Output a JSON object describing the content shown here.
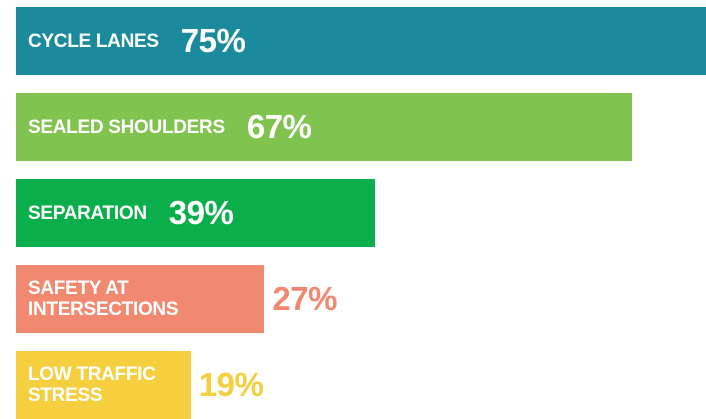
{
  "chart_data": {
    "type": "bar",
    "orientation": "horizontal",
    "categories": [
      "CYCLE LANES",
      "SEALED SHOULDERS",
      "SEPARATION",
      "SAFETY AT INTERSECTIONS",
      "LOW TRAFFIC STRESS"
    ],
    "values": [
      75,
      67,
      39,
      27,
      19
    ],
    "value_labels": [
      "75%",
      "67%",
      "39%",
      "27%",
      "19%"
    ],
    "colors": [
      "#1a8a9c",
      "#80c34e",
      "#0aae4a",
      "#f0896f",
      "#f5cf3e"
    ],
    "xlim": [
      0,
      75
    ]
  }
}
